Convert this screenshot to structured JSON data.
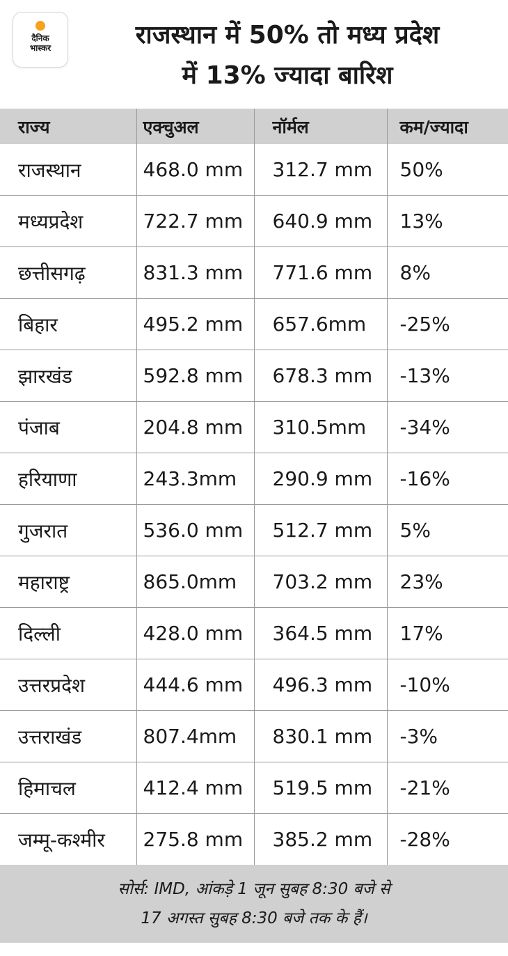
{
  "logo": {
    "line1": "दैनिक",
    "line2": "भास्कर",
    "accent": "#f7a21b"
  },
  "title": {
    "line1": "राजस्थान में 50% तो मध्य प्रदेश",
    "line2": "में 13% ज्यादा बारिश"
  },
  "table": {
    "headers": [
      "राज्य",
      "एक्चुअल",
      "नॉर्मल",
      "कम/ज्यादा"
    ],
    "rows": [
      {
        "state": "राजस्थान",
        "actual": "468.0 mm",
        "normal": "312.7 mm",
        "diff": "50%"
      },
      {
        "state": "मध्यप्रदेश",
        "actual": "722.7 mm",
        "normal": "640.9 mm",
        "diff": "13%"
      },
      {
        "state": "छत्तीसगढ़",
        "actual": "831.3 mm",
        "normal": "771.6 mm",
        "diff": "8%"
      },
      {
        "state": "बिहार",
        "actual": "495.2 mm",
        "normal": "657.6mm",
        "diff": "-25%"
      },
      {
        "state": "झारखंड",
        "actual": "592.8 mm",
        "normal": "678.3 mm",
        "diff": "-13%"
      },
      {
        "state": "पंजाब",
        "actual": "204.8 mm",
        "normal": "310.5mm",
        "diff": "-34%"
      },
      {
        "state": "हरियाणा",
        "actual": "243.3mm",
        "normal": "290.9 mm",
        "diff": "-16%"
      },
      {
        "state": "गुजरात",
        "actual": "536.0 mm",
        "normal": "512.7 mm",
        "diff": "5%"
      },
      {
        "state": "महाराष्ट्र",
        "actual": "865.0mm",
        "normal": "703.2 mm",
        "diff": "23%"
      },
      {
        "state": "दिल्ली",
        "actual": "428.0 mm",
        "normal": "364.5 mm",
        "diff": "17%"
      },
      {
        "state": "उत्तरप्रदेश",
        "actual": "444.6 mm",
        "normal": "496.3 mm",
        "diff": "-10%"
      },
      {
        "state": "उत्तराखंड",
        "actual": "807.4mm",
        "normal": "830.1 mm",
        "diff": "-3%"
      },
      {
        "state": "हिमाचल",
        "actual": "412.4 mm",
        "normal": "519.5 mm",
        "diff": "-21%"
      },
      {
        "state": "जम्मू-कश्मीर",
        "actual": "275.8 mm",
        "normal": "385.2 mm",
        "diff": "-28%"
      }
    ]
  },
  "footer": {
    "line1": "सोर्स: IMD, आंकड़े 1 जून सुबह 8:30 बजे से",
    "line2": "17 अगस्त सुबह 8:30 बजे तक के हैं।"
  }
}
